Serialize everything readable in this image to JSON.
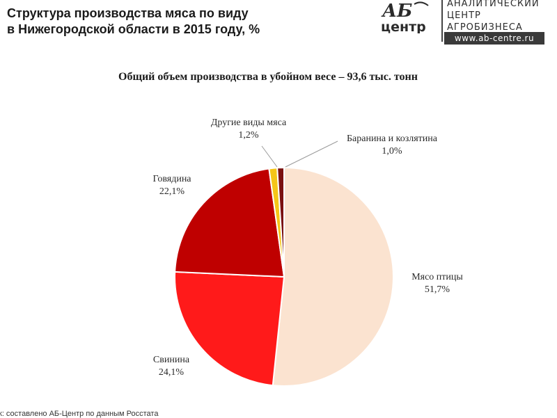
{
  "header": {
    "title_line1": "Структура производства мяса по виду",
    "title_line2": "в Нижегородской области в 2015 году, %"
  },
  "logo": {
    "mark_top": "АБ",
    "mark_bottom": "центр",
    "text_line1": "АНАЛИТИЧЕСКИЙ",
    "text_line2": "ЦЕНТР",
    "text_line3": "АГРОБИЗНЕСА",
    "url": "www.ab-centre.ru"
  },
  "chart_data": {
    "type": "pie",
    "title": "Общий объем производства в убойном весе – 93,6 тыс. тонн",
    "start_angle_deg": 0,
    "direction": "clockwise",
    "slices": [
      {
        "label": "Мясо птицы",
        "value_label": "51,7%",
        "value": 51.7,
        "color": "#fbe3d0"
      },
      {
        "label": "Свинина",
        "value_label": "24,1%",
        "value": 24.1,
        "color": "#ff1a1a"
      },
      {
        "label": "Говядина",
        "value_label": "22,1%",
        "value": 22.1,
        "color": "#bf0000"
      },
      {
        "label": "Другие виды мяса",
        "value_label": "1,2%",
        "value": 1.2,
        "color": "#f5c518"
      },
      {
        "label": "Баранина и козлятина",
        "value_label": "1,0%",
        "value": 1.0,
        "color": "#7a1010"
      }
    ]
  },
  "footer": {
    "source": "к: составлено АБ-Центр по данным Росстата"
  }
}
